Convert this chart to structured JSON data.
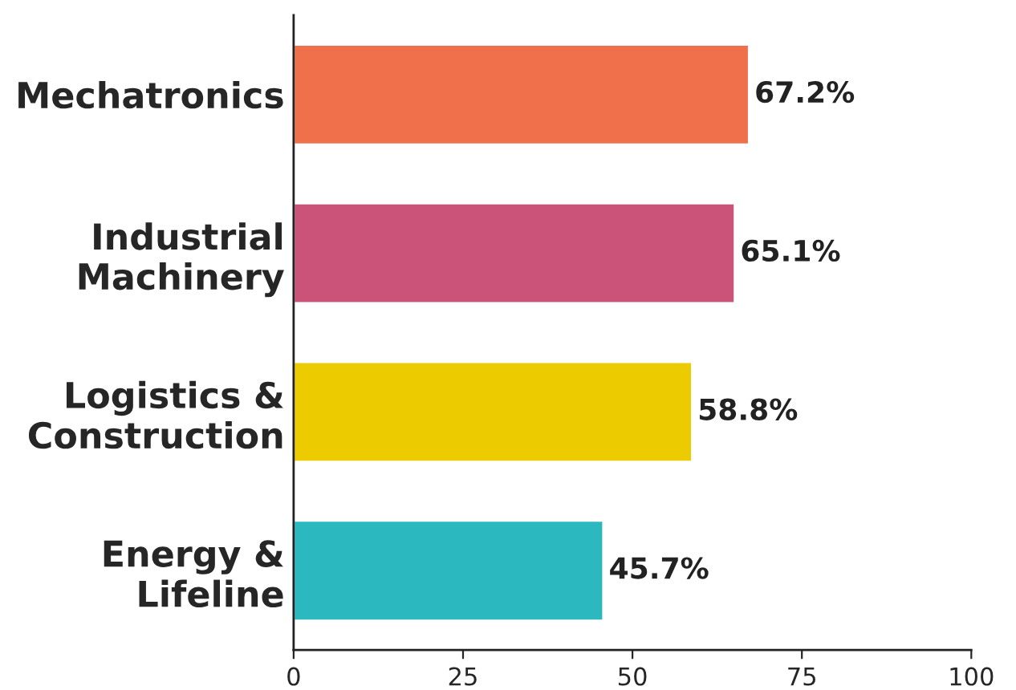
{
  "chart_data": {
    "type": "bar",
    "orientation": "horizontal",
    "categories": [
      "Mechatronics",
      "Industrial\nMachinery",
      "Logistics &\nConstruction",
      "Energy &\nLifeline"
    ],
    "values": [
      67.2,
      65.1,
      58.8,
      45.7
    ],
    "colors": [
      "#ef704b",
      "#cb5279",
      "#eccc00",
      "#2bb8bf"
    ],
    "value_labels": [
      "67.2%",
      "65.1%",
      "58.8%",
      "45.7%"
    ],
    "xlim": [
      0,
      100
    ],
    "xticks": [
      0,
      25,
      50,
      75,
      100
    ],
    "grid": false,
    "legend": false
  }
}
